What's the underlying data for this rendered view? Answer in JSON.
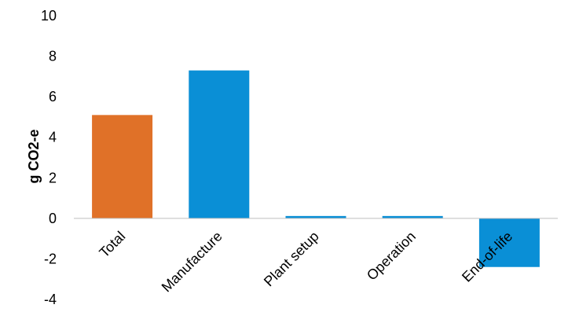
{
  "chart_data": {
    "type": "bar",
    "title": "",
    "xlabel": "",
    "ylabel": "g CO2-e",
    "categories": [
      "Total",
      "Manufacture",
      "Plant setup",
      "Operation",
      "End-of-life"
    ],
    "values": [
      5.1,
      7.3,
      0.1,
      0.1,
      -2.4
    ],
    "colors": [
      "#E07128",
      "#0A8FD6",
      "#0A8FD6",
      "#0A8FD6",
      "#0A8FD6"
    ],
    "ylim": [
      -4,
      10
    ],
    "yticks": [
      "-4",
      "-2",
      "0",
      "2",
      "4",
      "6",
      "8",
      "10"
    ],
    "grid": false,
    "legend": "none"
  }
}
